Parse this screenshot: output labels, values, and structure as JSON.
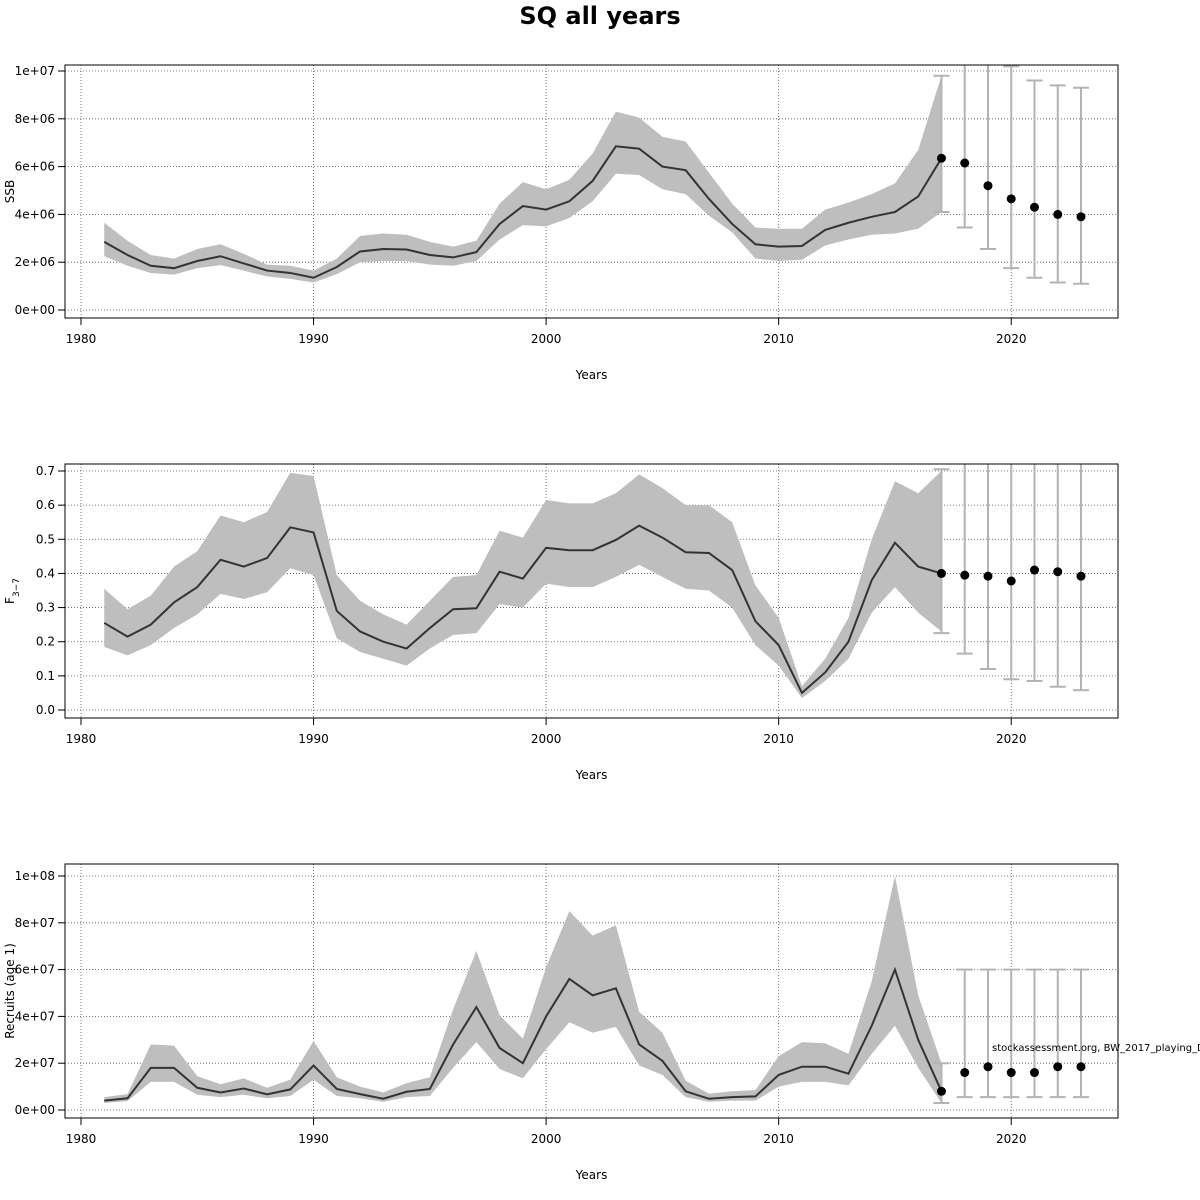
{
  "title": "SQ all years",
  "note": "stockassessment.org, BW_2017_playing_D",
  "colors": {
    "band": "#bebebe",
    "line": "#333333",
    "point": "#000000",
    "errorbar": "#b3b3b3",
    "grid": "#555555"
  },
  "chart_data": [
    {
      "type": "line",
      "xlabel": "Years",
      "ylabel": "SSB",
      "xlim": [
        1980,
        2023
      ],
      "ylim": [
        0,
        10000000
      ],
      "xticks": [
        1980,
        1990,
        2000,
        2010,
        2020
      ],
      "yticks": [
        0,
        2000000,
        4000000,
        6000000,
        8000000,
        10000000
      ],
      "ytick_labels": [
        "0e+00",
        "2e+06",
        "4e+06",
        "6e+06",
        "8e+06",
        "1e+07"
      ],
      "grid": true,
      "years": [
        1981,
        1982,
        1983,
        1984,
        1985,
        1986,
        1987,
        1988,
        1989,
        1990,
        1991,
        1992,
        1993,
        1994,
        1995,
        1996,
        1997,
        1998,
        1999,
        2000,
        2001,
        2002,
        2003,
        2004,
        2005,
        2006,
        2007,
        2008,
        2009,
        2010,
        2011,
        2012,
        2013,
        2014,
        2015,
        2016,
        2017
      ],
      "estimate": [
        2850000,
        2300000,
        1850000,
        1750000,
        2050000,
        2250000,
        1950000,
        1650000,
        1550000,
        1350000,
        1800000,
        2450000,
        2550000,
        2530000,
        2300000,
        2200000,
        2420000,
        3600000,
        4350000,
        4200000,
        4550000,
        5400000,
        6850000,
        6750000,
        6000000,
        5850000,
        4650000,
        3600000,
        2750000,
        2650000,
        2680000,
        3350000,
        3650000,
        3900000,
        4100000,
        4750000,
        6350000
      ],
      "lower": [
        2250000,
        1850000,
        1550000,
        1480000,
        1750000,
        1880000,
        1650000,
        1400000,
        1300000,
        1150000,
        1500000,
        2000000,
        2050000,
        2050000,
        1900000,
        1850000,
        2050000,
        2950000,
        3550000,
        3500000,
        3850000,
        4550000,
        5700000,
        5650000,
        5050000,
        4850000,
        3950000,
        3250000,
        2150000,
        2050000,
        2100000,
        2700000,
        2950000,
        3150000,
        3200000,
        3400000,
        4100000
      ],
      "upper": [
        3650000,
        2900000,
        2300000,
        2150000,
        2550000,
        2750000,
        2350000,
        1900000,
        1850000,
        1650000,
        2150000,
        3100000,
        3200000,
        3150000,
        2850000,
        2650000,
        2900000,
        4450000,
        5350000,
        5050000,
        5450000,
        6550000,
        8300000,
        8050000,
        7250000,
        7050000,
        5750000,
        4450000,
        3450000,
        3400000,
        3400000,
        4200000,
        4500000,
        4850000,
        5300000,
        6700000,
        9800000
      ],
      "forecast": {
        "years": [
          2017,
          2018,
          2019,
          2020,
          2021,
          2022,
          2023
        ],
        "median": [
          6350000,
          6150000,
          5200000,
          4650000,
          4300000,
          4000000,
          3900000
        ],
        "lower": [
          4100000,
          3450000,
          2550000,
          1750000,
          1350000,
          1150000,
          1100000
        ],
        "upper": [
          9800000,
          10500000,
          10500000,
          10200000,
          9600000,
          9400000,
          9300000
        ]
      }
    },
    {
      "type": "line",
      "xlabel": "Years",
      "ylabel": "F",
      "ylabel_subscript": "3−7",
      "xlim": [
        1980,
        2023
      ],
      "ylim": [
        0,
        0.7
      ],
      "xticks": [
        1980,
        1990,
        2000,
        2010,
        2020
      ],
      "yticks": [
        0,
        0.1,
        0.2,
        0.3,
        0.4,
        0.5,
        0.6,
        0.7
      ],
      "ytick_labels": [
        "0.0",
        "0.1",
        "0.2",
        "0.3",
        "0.4",
        "0.5",
        "0.6",
        "0.7"
      ],
      "grid": true,
      "years": [
        1981,
        1982,
        1983,
        1984,
        1985,
        1986,
        1987,
        1988,
        1989,
        1990,
        1991,
        1992,
        1993,
        1994,
        1995,
        1996,
        1997,
        1998,
        1999,
        2000,
        2001,
        2002,
        2003,
        2004,
        2005,
        2006,
        2007,
        2008,
        2009,
        2010,
        2011,
        2012,
        2013,
        2014,
        2015,
        2016,
        2017
      ],
      "estimate": [
        0.255,
        0.215,
        0.25,
        0.315,
        0.36,
        0.44,
        0.42,
        0.445,
        0.535,
        0.52,
        0.29,
        0.23,
        0.2,
        0.18,
        0.24,
        0.295,
        0.298,
        0.405,
        0.385,
        0.475,
        0.468,
        0.468,
        0.498,
        0.54,
        0.505,
        0.462,
        0.46,
        0.41,
        0.26,
        0.19,
        0.05,
        0.11,
        0.2,
        0.38,
        0.49,
        0.42,
        0.4
      ],
      "lower": [
        0.185,
        0.16,
        0.19,
        0.24,
        0.28,
        0.34,
        0.325,
        0.345,
        0.415,
        0.395,
        0.21,
        0.17,
        0.15,
        0.13,
        0.18,
        0.22,
        0.225,
        0.31,
        0.3,
        0.37,
        0.36,
        0.36,
        0.39,
        0.425,
        0.39,
        0.355,
        0.35,
        0.3,
        0.19,
        0.13,
        0.035,
        0.085,
        0.15,
        0.285,
        0.36,
        0.285,
        0.23
      ],
      "upper": [
        0.355,
        0.295,
        0.335,
        0.42,
        0.465,
        0.57,
        0.55,
        0.58,
        0.695,
        0.685,
        0.395,
        0.32,
        0.28,
        0.25,
        0.32,
        0.39,
        0.395,
        0.525,
        0.505,
        0.615,
        0.605,
        0.605,
        0.635,
        0.69,
        0.65,
        0.6,
        0.6,
        0.55,
        0.365,
        0.27,
        0.07,
        0.15,
        0.27,
        0.5,
        0.67,
        0.635,
        0.7
      ],
      "forecast": {
        "years": [
          2017,
          2018,
          2019,
          2020,
          2021,
          2022,
          2023
        ],
        "median": [
          0.4,
          0.395,
          0.392,
          0.378,
          0.41,
          0.405,
          0.392
        ],
        "lower": [
          0.225,
          0.165,
          0.12,
          0.09,
          0.085,
          0.068,
          0.058
        ],
        "upper": [
          0.705,
          0.73,
          0.73,
          0.73,
          0.73,
          0.73,
          0.73
        ]
      }
    },
    {
      "type": "line",
      "xlabel": "Years",
      "ylabel": "Recruits (age 1)",
      "xlim": [
        1980,
        2023
      ],
      "ylim": [
        0,
        100000000
      ],
      "xticks": [
        1980,
        1990,
        2000,
        2010,
        2020
      ],
      "yticks": [
        0,
        20000000,
        40000000,
        60000000,
        80000000,
        100000000
      ],
      "ytick_labels": [
        "0e+00",
        "2e+07",
        "4e+07",
        "6e+07",
        "8e+07",
        "1e+08"
      ],
      "grid": true,
      "years": [
        1981,
        1982,
        1983,
        1984,
        1985,
        1986,
        1987,
        1988,
        1989,
        1990,
        1991,
        1992,
        1993,
        1994,
        1995,
        1996,
        1997,
        1998,
        1999,
        2000,
        2001,
        2002,
        2003,
        2004,
        2005,
        2006,
        2007,
        2008,
        2009,
        2010,
        2011,
        2012,
        2013,
        2014,
        2015,
        2016,
        2017
      ],
      "estimate": [
        4000000,
        5000000,
        18000000,
        18000000,
        9500000,
        7500000,
        9200000,
        6700000,
        8800000,
        19000000,
        9000000,
        6800000,
        4800000,
        7800000,
        9000000,
        28000000,
        44000000,
        26500000,
        20000000,
        40000000,
        56000000,
        49000000,
        52000000,
        28000000,
        21000000,
        8000000,
        4800000,
        5500000,
        5800000,
        15000000,
        18500000,
        18500000,
        15500000,
        36000000,
        60000000,
        30000000,
        8000000
      ],
      "lower": [
        3000000,
        3800000,
        12000000,
        12000000,
        6500000,
        5500000,
        6500000,
        5000000,
        6000000,
        13000000,
        6000000,
        5000000,
        3500000,
        5500000,
        6000000,
        18000000,
        29000000,
        17500000,
        13500000,
        26000000,
        37500000,
        33000000,
        35500000,
        19000000,
        15000000,
        5500000,
        3500000,
        4000000,
        4000000,
        10000000,
        12000000,
        12000000,
        10500000,
        24000000,
        36000000,
        18000000,
        3000000
      ],
      "upper": [
        5500000,
        6800000,
        28000000,
        27500000,
        14500000,
        11000000,
        13500000,
        9500000,
        13000000,
        29500000,
        14000000,
        10000000,
        7500000,
        11500000,
        14000000,
        43000000,
        68000000,
        40500000,
        30500000,
        61000000,
        85000000,
        74500000,
        79000000,
        42000000,
        33000000,
        12500000,
        7000000,
        8000000,
        8500000,
        23000000,
        29000000,
        28500000,
        24000000,
        55000000,
        100000000,
        49000000,
        20000000
      ],
      "forecast": {
        "years": [
          2017,
          2018,
          2019,
          2020,
          2021,
          2022,
          2023
        ],
        "median": [
          8000000,
          16000000,
          18500000,
          16000000,
          16000000,
          18500000,
          18500000
        ],
        "lower": [
          3000000,
          5500000,
          5500000,
          5500000,
          5500000,
          5500000,
          5500000
        ],
        "upper": [
          20000000,
          60000000,
          60000000,
          60000000,
          60000000,
          60000000,
          60000000
        ]
      }
    }
  ]
}
